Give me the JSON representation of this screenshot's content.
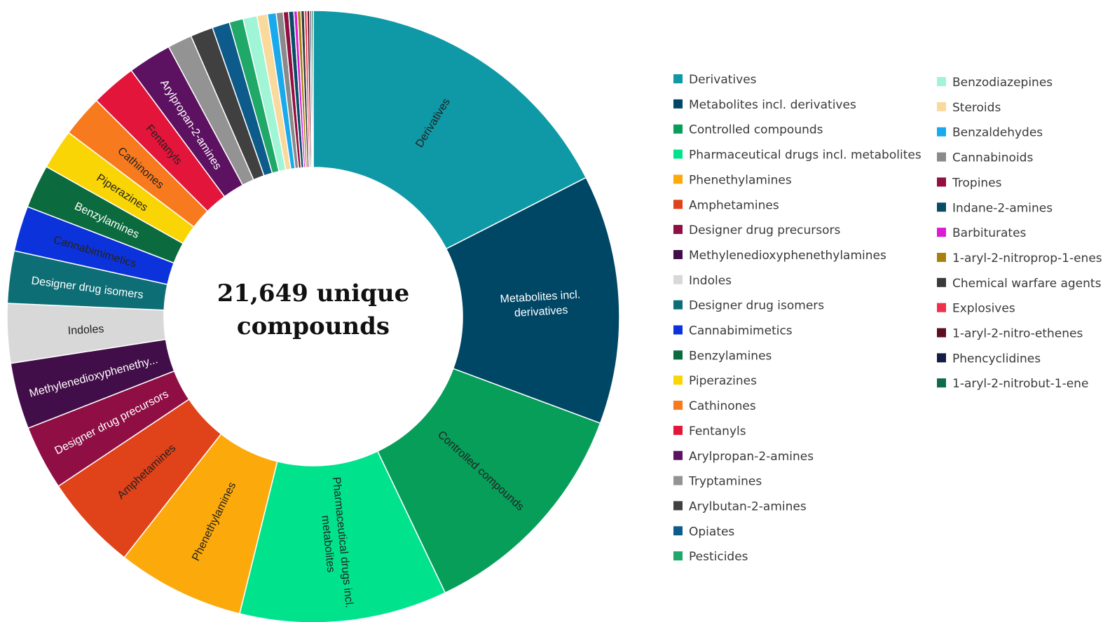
{
  "chart_data": {
    "type": "pie",
    "variant": "donut",
    "center_label": [
      "21,649 unique",
      "compounds"
    ],
    "legend_placement": "right",
    "slices": [
      {
        "name": "Derivatives",
        "value": 19.0,
        "color": "#0f99a6",
        "label_color": "#222222",
        "label_lines": [
          "Derivatives"
        ]
      },
      {
        "name": "Metabolites incl. derivatives",
        "value": 14.3,
        "color": "#004766",
        "label_color": "#ffffff",
        "label_lines": [
          "Metabolites incl.",
          "derivatives"
        ]
      },
      {
        "name": "Controlled compounds",
        "value": 13.3,
        "color": "#079e5a",
        "label_color": "#222222",
        "label_lines": [
          "Controlled compounds"
        ]
      },
      {
        "name": "Pharmaceutical drugs incl. metabolites",
        "value": 11.9,
        "color": "#00e38c",
        "label_color": "#222222",
        "label_lines": [
          "Pharmaceutical drugs incl.",
          "metabolites"
        ]
      },
      {
        "name": "Phenethylamines",
        "value": 7.3,
        "color": "#fca90b",
        "label_color": "#222222",
        "label_lines": [
          "Phenethylamines"
        ]
      },
      {
        "name": "Amphetamines",
        "value": 5.5,
        "color": "#e04219",
        "label_color": "#222222",
        "label_lines": [
          "Amphetamines"
        ]
      },
      {
        "name": "Designer drug precursors",
        "value": 3.7,
        "color": "#8f0f45",
        "label_color": "#ffffff",
        "label_lines": [
          "Designer drug precursors"
        ]
      },
      {
        "name": "Methylenedioxyphenethylamines",
        "value": 3.8,
        "color": "#420e49",
        "label_color": "#ffffff",
        "label_lines": [
          "Methylenedioxyphenethy..."
        ]
      },
      {
        "name": "Indoles",
        "value": 3.4,
        "color": "#d8d8d8",
        "label_color": "#222222",
        "label_lines": [
          "Indoles"
        ]
      },
      {
        "name": "Designer drug isomers",
        "value": 3.0,
        "color": "#0e6e76",
        "label_color": "#ffffff",
        "label_lines": [
          "Designer drug isomers"
        ]
      },
      {
        "name": "Cannabimimetics",
        "value": 2.6,
        "color": "#0c33db",
        "label_color": "#222222",
        "label_lines": [
          "Cannabimimetics"
        ]
      },
      {
        "name": "Benzylamines",
        "value": 2.5,
        "color": "#0c6b3e",
        "label_color": "#ffffff",
        "label_lines": [
          "Benzylamines"
        ]
      },
      {
        "name": "Piperazines",
        "value": 2.3,
        "color": "#fad505",
        "label_color": "#222222",
        "label_lines": [
          "Piperazines"
        ]
      },
      {
        "name": "Cathinones",
        "value": 2.4,
        "color": "#f87a1e",
        "label_color": "#222222",
        "label_lines": [
          "Cathinones"
        ]
      },
      {
        "name": "Fentanyls",
        "value": 2.6,
        "color": "#e4153a",
        "label_color": "#222222",
        "label_lines": [
          "Fentanyls"
        ]
      },
      {
        "name": "Arylpropan-2-amines",
        "value": 2.5,
        "color": "#5c1260",
        "label_color": "#ffffff",
        "label_lines": [
          "Arylpropan-2-amines"
        ]
      },
      {
        "name": "Tryptamines",
        "value": 1.4,
        "color": "#939393",
        "label_color": "#222222",
        "label_lines": []
      },
      {
        "name": "Arylbutan-2-amines",
        "value": 1.3,
        "color": "#404040",
        "label_color": "#ffffff",
        "label_lines": []
      },
      {
        "name": "Opiates",
        "value": 1.0,
        "color": "#0c5b8a",
        "label_color": "#ffffff",
        "label_lines": []
      },
      {
        "name": "Pesticides",
        "value": 0.8,
        "color": "#1fa867",
        "label_color": "#ffffff",
        "label_lines": []
      },
      {
        "name": "Benzodiazepines",
        "value": 0.8,
        "color": "#9ff5d6",
        "label_color": "#222222",
        "label_lines": []
      },
      {
        "name": "Steroids",
        "value": 0.6,
        "color": "#fad99c",
        "label_color": "#222222",
        "label_lines": []
      },
      {
        "name": "Benzaldehydes",
        "value": 0.5,
        "color": "#1aaaeb",
        "label_color": "#222222",
        "label_lines": []
      },
      {
        "name": "Cannabinoids",
        "value": 0.4,
        "color": "#8a8a8a",
        "label_color": "#222222",
        "label_lines": []
      },
      {
        "name": "Tropines",
        "value": 0.3,
        "color": "#920f3f",
        "label_color": "#ffffff",
        "label_lines": []
      },
      {
        "name": "Indane-2-amines",
        "value": 0.3,
        "color": "#094c66",
        "label_color": "#ffffff",
        "label_lines": []
      },
      {
        "name": "Barbiturates",
        "value": 0.2,
        "color": "#dd1ad4",
        "label_color": "#ffffff",
        "label_lines": []
      },
      {
        "name": "1-aryl-2-nitroprop-1-enes",
        "value": 0.2,
        "color": "#a8800e",
        "label_color": "#ffffff",
        "label_lines": []
      },
      {
        "name": "Chemical warfare agents",
        "value": 0.2,
        "color": "#3a3a3a",
        "label_color": "#ffffff",
        "label_lines": []
      },
      {
        "name": "Explosives",
        "value": 0.15,
        "color": "#f0304b",
        "label_color": "#ffffff",
        "label_lines": []
      },
      {
        "name": "1-aryl-2-nitro-ethenes",
        "value": 0.15,
        "color": "#5c0e22",
        "label_color": "#ffffff",
        "label_lines": []
      },
      {
        "name": "Phencyclidines",
        "value": 0.1,
        "color": "#141d45",
        "label_color": "#ffffff",
        "label_lines": []
      },
      {
        "name": "1-aryl-2-nitrobut-1-ene",
        "value": 0.1,
        "color": "#0f6b4a",
        "label_color": "#ffffff",
        "label_lines": []
      }
    ]
  }
}
